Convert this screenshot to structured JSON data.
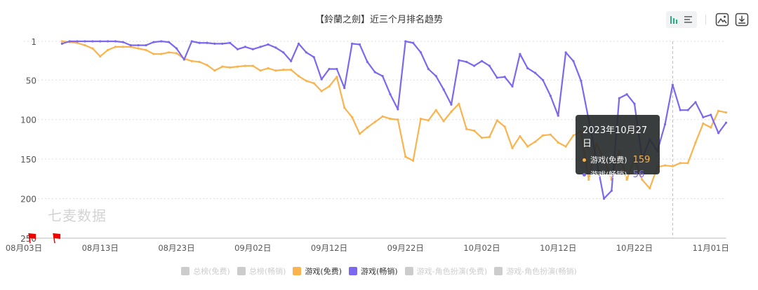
{
  "title": "【鈴蘭之劍】近三个月排名趋势",
  "toolbar": {
    "icons": [
      "bar-chart-icon",
      "list-icon",
      "image-icon",
      "download-icon"
    ],
    "accent": "#1fb37f"
  },
  "watermark": "七麦数据",
  "legend": [
    {
      "label": "总榜(免费)",
      "active": false,
      "color": "#cccccc"
    },
    {
      "label": "总榜(畅销)",
      "active": false,
      "color": "#cccccc"
    },
    {
      "label": "游戏(免费)",
      "active": true,
      "color": "#fbb34d"
    },
    {
      "label": "游戏(畅销)",
      "active": true,
      "color": "#7b68ee"
    },
    {
      "label": "游戏-角色扮演(免费)",
      "active": false,
      "color": "#cccccc"
    },
    {
      "label": "游戏-角色扮演(畅销)",
      "active": false,
      "color": "#cccccc"
    }
  ],
  "tooltip": {
    "date": "2023年10月27日",
    "x": "10-27",
    "rows": [
      {
        "label": "游戏(免费)",
        "value": "159",
        "color": "#fbb34d"
      },
      {
        "label": "游戏(畅销)",
        "value": "56",
        "color": "#7b68ee"
      }
    ]
  },
  "markers": [
    "flag-icon",
    "flag-icon"
  ],
  "chart_data": {
    "type": "line",
    "title": "【鈴蘭之劍】近三个月排名趋势",
    "y_inverted": true,
    "ylim": [
      1,
      250
    ],
    "yticks": [
      "1",
      "50",
      "100",
      "150",
      "200",
      "250"
    ],
    "ytick_values": [
      1,
      50,
      100,
      150,
      200,
      250
    ],
    "xticks": [
      "08月03日",
      "08月13日",
      "08月23日",
      "09月02日",
      "09月12日",
      "09月22日",
      "10月02日",
      "10月12日",
      "10月22日",
      "11月01日"
    ],
    "xtick_values": [
      "08-03",
      "08-13",
      "08-23",
      "09-02",
      "09-12",
      "09-22",
      "10-02",
      "10-12",
      "10-22",
      "11-01"
    ],
    "xlim": [
      "08-03",
      "11-03"
    ],
    "grid": true,
    "legend_position": "bottom",
    "x": [
      "08-08",
      "08-09",
      "08-10",
      "08-11",
      "08-12",
      "08-13",
      "08-14",
      "08-15",
      "08-16",
      "08-17",
      "08-18",
      "08-19",
      "08-20",
      "08-21",
      "08-22",
      "08-23",
      "08-24",
      "08-25",
      "08-26",
      "08-27",
      "08-28",
      "08-29",
      "08-30",
      "08-31",
      "09-01",
      "09-02",
      "09-03",
      "09-04",
      "09-05",
      "09-06",
      "09-07",
      "09-08",
      "09-09",
      "09-10",
      "09-11",
      "09-12",
      "09-13",
      "09-14",
      "09-15",
      "09-16",
      "09-17",
      "09-18",
      "09-19",
      "09-20",
      "09-21",
      "09-22",
      "09-23",
      "09-24",
      "09-25",
      "09-26",
      "09-27",
      "09-28",
      "09-29",
      "09-30",
      "10-01",
      "10-02",
      "10-03",
      "10-04",
      "10-05",
      "10-06",
      "10-07",
      "10-08",
      "10-09",
      "10-10",
      "10-11",
      "10-12",
      "10-13",
      "10-14",
      "10-15",
      "10-16",
      "10-17",
      "10-18",
      "10-19",
      "10-20",
      "10-21",
      "10-22",
      "10-23",
      "10-24",
      "10-25",
      "10-26",
      "10-27",
      "10-28",
      "10-29",
      "10-30",
      "10-31",
      "11-01",
      "11-02",
      "11-03"
    ],
    "series": [
      {
        "name": "游戏(免费)",
        "color": "#fbb34d",
        "values": [
          1,
          2,
          3,
          6,
          10,
          20,
          12,
          8,
          8,
          8,
          10,
          12,
          17,
          17,
          15,
          16,
          23,
          26,
          27,
          31,
          38,
          33,
          34,
          33,
          32,
          32,
          38,
          35,
          38,
          37,
          37,
          45,
          51,
          54,
          64,
          58,
          46,
          85,
          97,
          118,
          110,
          103,
          96,
          99,
          100,
          147,
          152,
          99,
          101,
          88,
          102,
          90,
          80,
          112,
          114,
          123,
          122,
          101,
          109,
          136,
          121,
          134,
          128,
          120,
          119,
          129,
          134,
          120,
          115,
          176,
          130,
          150,
          176,
          140,
          176,
          150,
          176,
          187,
          160,
          158,
          159,
          155,
          155,
          129,
          105,
          110,
          89,
          91
        ]
      },
      {
        "name": "游戏(畅销)",
        "color": "#7b68ee",
        "values": [
          4,
          1,
          1,
          1,
          1,
          1,
          1,
          1,
          2,
          6,
          6,
          6,
          2,
          1,
          2,
          10,
          24,
          1,
          3,
          3,
          4,
          4,
          3,
          11,
          8,
          11,
          8,
          5,
          9,
          15,
          26,
          4,
          15,
          21,
          49,
          36,
          36,
          60,
          4,
          5,
          27,
          40,
          45,
          68,
          87,
          1,
          3,
          15,
          36,
          45,
          62,
          81,
          25,
          27,
          32,
          26,
          32,
          47,
          46,
          58,
          17,
          35,
          41,
          50,
          70,
          95,
          15,
          26,
          51,
          100,
          150,
          200,
          190,
          73,
          68,
          80,
          150,
          125,
          140,
          106,
          56,
          88,
          88,
          78,
          97,
          94,
          117,
          104
        ]
      }
    ]
  }
}
